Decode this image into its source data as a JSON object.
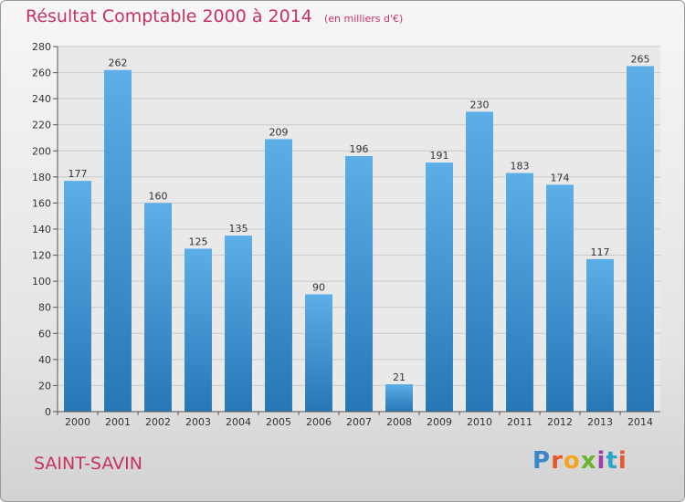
{
  "header": {
    "title": "Résultat Comptable 2000 à 2014",
    "subtitle": "(en milliers d'€)"
  },
  "footer": {
    "place": "SAINT-SAVIN",
    "logo": "Proxiti"
  },
  "colors": {
    "title": "#c7335f",
    "bar_top": "#5caee6",
    "bar_bottom": "#2677b6",
    "logo": [
      "#3a86c8",
      "#e8572a",
      "#f2a51c",
      "#6ab42d",
      "#9b3fa6",
      "#2aa6c8",
      "#e8572a"
    ]
  },
  "chart_data": {
    "type": "bar",
    "categories": [
      "2000",
      "2001",
      "2002",
      "2003",
      "2004",
      "2005",
      "2006",
      "2007",
      "2008",
      "2009",
      "2010",
      "2011",
      "2012",
      "2013",
      "2014"
    ],
    "values": [
      177,
      262,
      160,
      125,
      135,
      209,
      90,
      196,
      21,
      191,
      230,
      183,
      174,
      117,
      265
    ],
    "title": "Résultat Comptable 2000 à 2014",
    "ylim": [
      0,
      280
    ],
    "yticks": [
      0,
      20,
      40,
      60,
      80,
      100,
      120,
      140,
      160,
      180,
      200,
      220,
      240,
      260,
      280
    ],
    "grid": true,
    "data_labels": true
  }
}
